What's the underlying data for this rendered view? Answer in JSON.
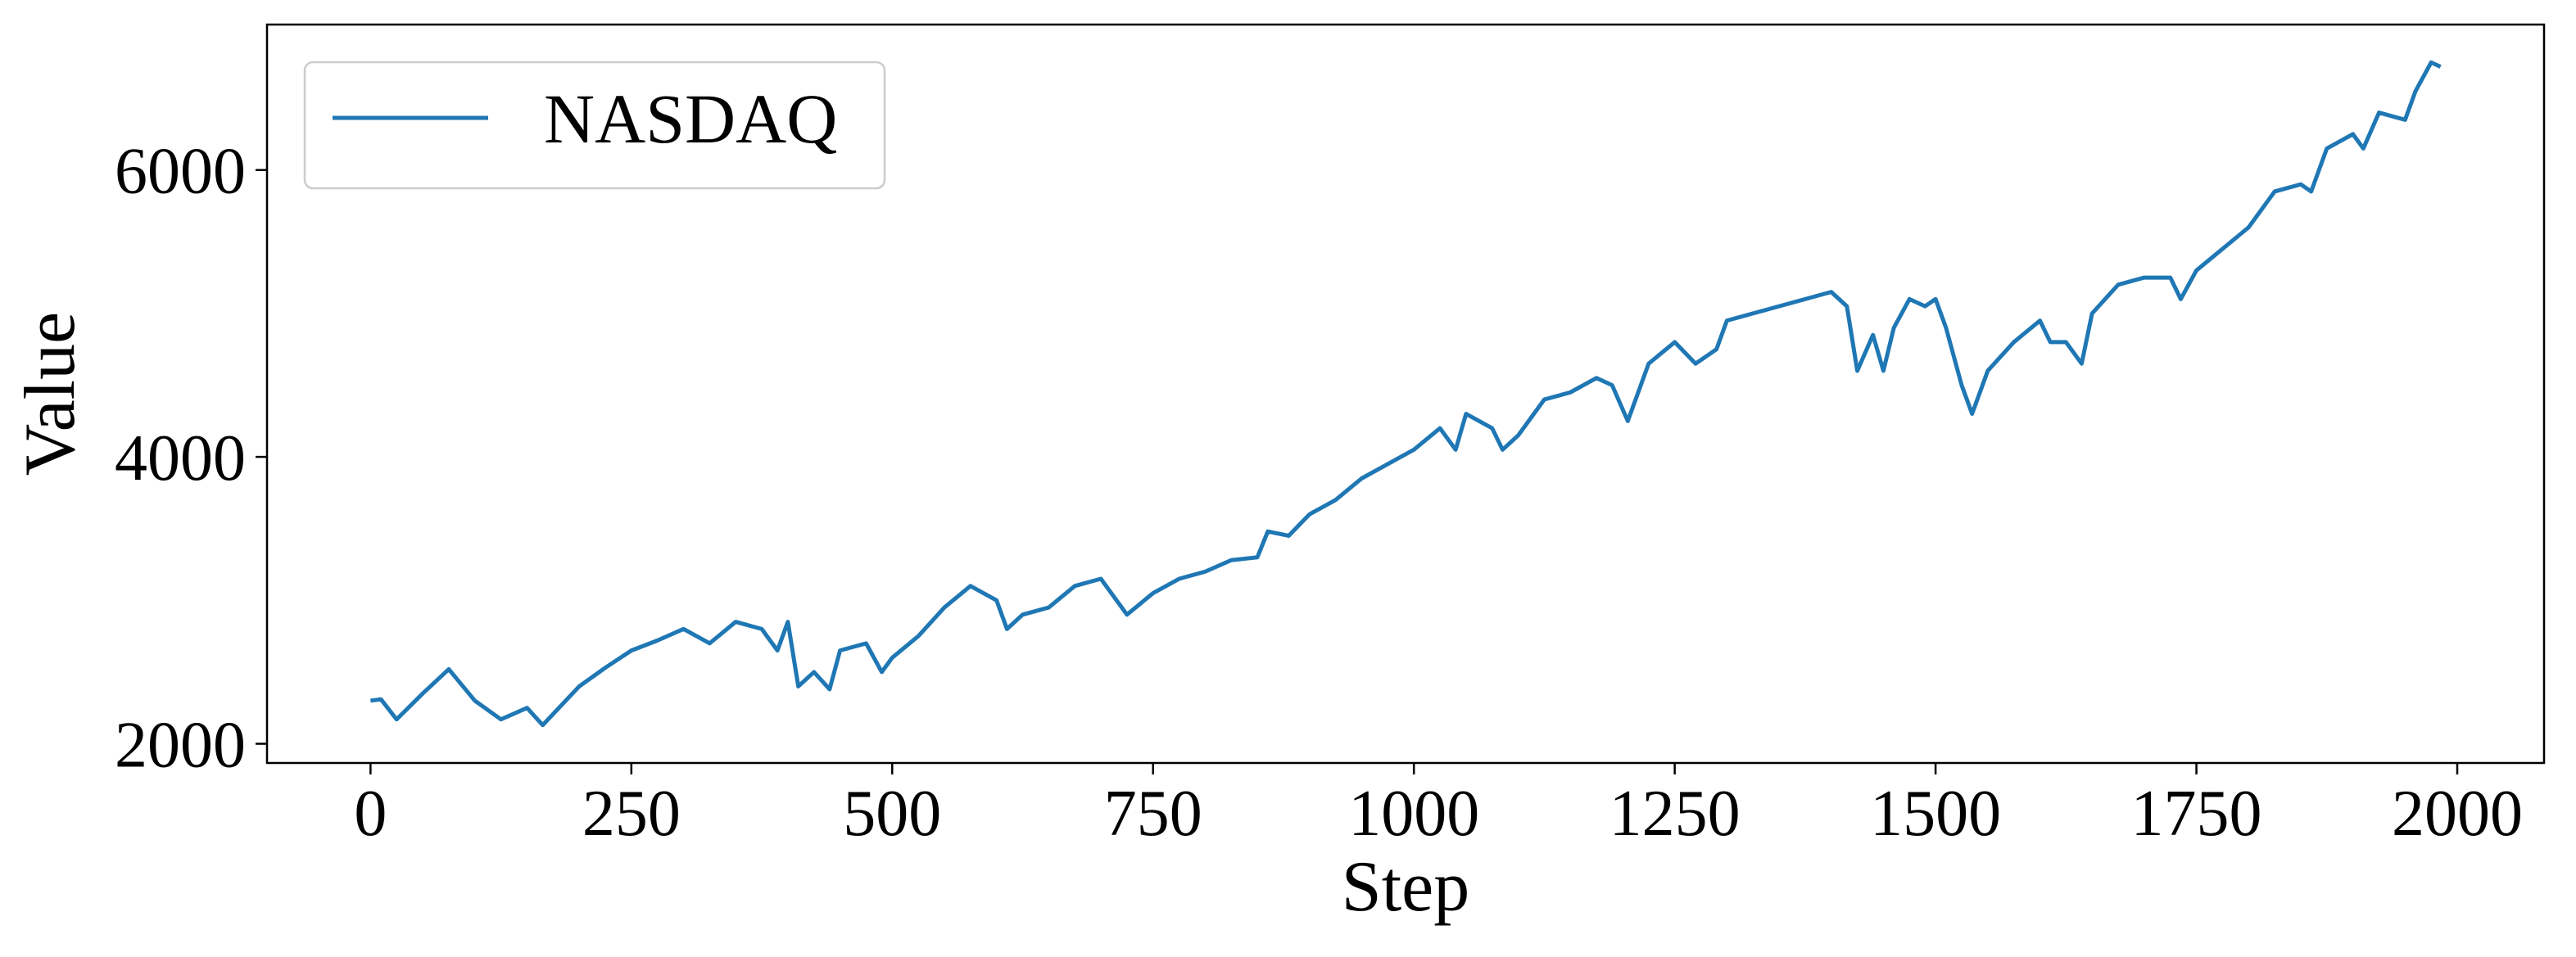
{
  "chart_data": {
    "type": "line",
    "x_label": "Step",
    "y_label": "Value",
    "x": [
      0,
      10,
      25,
      50,
      75,
      100,
      125,
      150,
      165,
      200,
      225,
      250,
      275,
      300,
      325,
      350,
      375,
      390,
      400,
      410,
      425,
      440,
      450,
      475,
      490,
      500,
      525,
      550,
      575,
      600,
      610,
      625,
      650,
      675,
      700,
      725,
      750,
      775,
      800,
      825,
      850,
      860,
      880,
      900,
      925,
      950,
      975,
      1000,
      1025,
      1040,
      1050,
      1075,
      1085,
      1100,
      1125,
      1150,
      1175,
      1190,
      1205,
      1225,
      1250,
      1270,
      1290,
      1300,
      1325,
      1350,
      1375,
      1400,
      1415,
      1425,
      1440,
      1450,
      1460,
      1475,
      1490,
      1500,
      1510,
      1525,
      1535,
      1550,
      1575,
      1600,
      1610,
      1625,
      1640,
      1650,
      1675,
      1700,
      1725,
      1735,
      1750,
      1775,
      1800,
      1825,
      1850,
      1860,
      1875,
      1900,
      1910,
      1925,
      1950,
      1960,
      1975,
      1984
    ],
    "series": [
      {
        "name": "NASDAQ",
        "color": "#1f77b4",
        "values": [
          2300,
          2310,
          2170,
          2350,
          2520,
          2300,
          2170,
          2250,
          2130,
          2400,
          2530,
          2650,
          2720,
          2800,
          2700,
          2850,
          2800,
          2650,
          2850,
          2400,
          2500,
          2380,
          2650,
          2700,
          2500,
          2600,
          2750,
          2950,
          3100,
          3000,
          2800,
          2900,
          2950,
          3100,
          3150,
          2900,
          3050,
          3150,
          3200,
          3280,
          3300,
          3480,
          3450,
          3600,
          3700,
          3850,
          3950,
          4050,
          4200,
          4050,
          4300,
          4200,
          4050,
          4150,
          4400,
          4450,
          4550,
          4500,
          4250,
          4650,
          4800,
          4650,
          4750,
          4950,
          5000,
          5050,
          5100,
          5150,
          5050,
          4600,
          4850,
          4600,
          4900,
          5100,
          5050,
          5100,
          4900,
          4500,
          4300,
          4600,
          4800,
          4950,
          4800,
          4800,
          4650,
          5000,
          5200,
          5250,
          5250,
          5100,
          5300,
          5450,
          5600,
          5850,
          5900,
          5850,
          6150,
          6250,
          6150,
          6400,
          6350,
          6550,
          6750,
          6720
        ]
      }
    ],
    "xlim": [
      -99.2,
      2083.2
    ],
    "ylim": [
      1866,
      7014
    ],
    "xticks": [
      0,
      250,
      500,
      750,
      1000,
      1250,
      1500,
      1750,
      2000
    ],
    "yticks": [
      2000,
      4000,
      6000
    ],
    "grid": false,
    "legend": "upper left"
  }
}
